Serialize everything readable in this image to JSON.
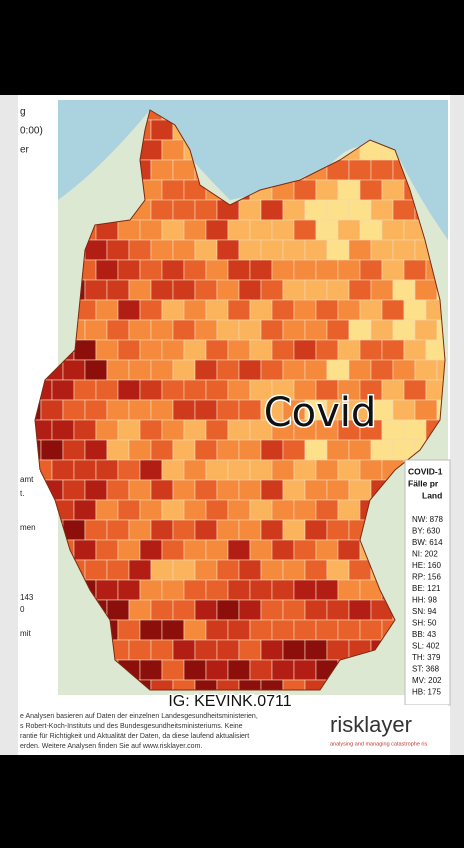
{
  "header": {
    "lines": [
      "g",
      "0:00)",
      "er"
    ]
  },
  "side_notes": [
    "amt",
    "t.",
    "men",
    "143",
    "0",
    "mit"
  ],
  "overlay": {
    "caption": "Covid",
    "watermark": "IG: KEVINK.0711"
  },
  "legend": {
    "title": [
      "COVID-1",
      "Fälle pr",
      "Land"
    ],
    "entries": [
      "NW: 878",
      "BY: 630",
      "BW: 614",
      "NI: 202",
      "HE: 160",
      "RP: 156",
      "BE: 121",
      "HH: 98",
      "SN: 94",
      "SH: 50",
      "BB: 43",
      "SL: 402",
      "TH: 379",
      "ST: 368",
      "MV: 202",
      "HB: 175"
    ]
  },
  "footer": {
    "lines": [
      "e Analysen basieren auf Daten der einzelnen Landesgesundheitsministerien,",
      "s Robert-Koch-Instituts und des Bundesgesundheitsministeriums. Keine",
      "rantie für Richtigkeit und Aktualität der Daten, da diese laufend aktualisiert",
      "erden. Weitere Analysen finden Sie auf www.risklayer.com."
    ]
  },
  "logo": {
    "name": "risklayer",
    "tagline": "analysing and managing catastrophe ris"
  }
}
